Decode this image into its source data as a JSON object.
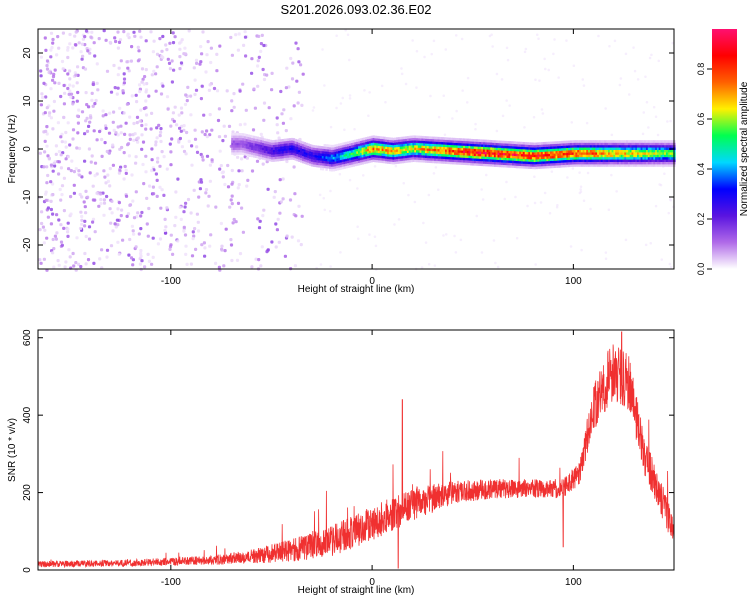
{
  "figure_title": "S201.2026.093.02.36.E02",
  "chart_data": [
    {
      "type": "heatmap",
      "title": "S201.2026.093.02.36.E02",
      "xlabel": "Height of straight line (km)",
      "ylabel": "Frequency (Hz)",
      "xlim": [
        -166,
        150
      ],
      "ylim": [
        -25,
        25
      ],
      "x_ticks": [
        -100,
        0,
        100
      ],
      "y_ticks": [
        -20,
        -10,
        0,
        10,
        20
      ],
      "grid": false,
      "colorbar": {
        "label": "Normalized spectral amplitude",
        "range": [
          0,
          0.96
        ],
        "ticks": [
          0.0,
          0.2,
          0.4,
          0.6,
          0.8
        ],
        "colormap": [
          "#ffffff",
          "#b06ae8",
          "#5a14e0",
          "#0000ff",
          "#00d8ff",
          "#00ff50",
          "#fff000",
          "#ff6000",
          "#ff0000",
          "#ff1070"
        ]
      },
      "structure": {
        "scatter_region_x": [
          -166,
          -35
        ],
        "scatter_region_amplitude": [
          0.02,
          0.15
        ],
        "ridge_center_freq": [
          {
            "x": -65,
            "f": 1
          },
          {
            "x": -50,
            "f": -0.5
          },
          {
            "x": -40,
            "f": 0
          },
          {
            "x": -30,
            "f": -1.5
          },
          {
            "x": -20,
            "f": -2
          },
          {
            "x": -10,
            "f": -1
          },
          {
            "x": 0,
            "f": 0
          },
          {
            "x": 10,
            "f": -0.5
          },
          {
            "x": 20,
            "f": 0
          },
          {
            "x": 40,
            "f": -0.5
          },
          {
            "x": 60,
            "f": -1
          },
          {
            "x": 80,
            "f": -1.5
          },
          {
            "x": 100,
            "f": -1
          },
          {
            "x": 120,
            "f": -1
          },
          {
            "x": 150,
            "f": -1
          }
        ],
        "ridge_peak_amplitude": [
          {
            "x": -65,
            "a": 0.15
          },
          {
            "x": -45,
            "a": 0.3
          },
          {
            "x": -30,
            "a": 0.3
          },
          {
            "x": -10,
            "a": 0.55
          },
          {
            "x": 0,
            "a": 0.8
          },
          {
            "x": 20,
            "a": 0.7
          },
          {
            "x": 50,
            "a": 0.95
          },
          {
            "x": 75,
            "a": 0.9
          },
          {
            "x": 85,
            "a": 0.9
          },
          {
            "x": 100,
            "a": 0.85
          },
          {
            "x": 120,
            "a": 0.75
          },
          {
            "x": 150,
            "a": 0.6
          }
        ]
      }
    },
    {
      "type": "line",
      "xlabel": "Height of straight line (km)",
      "ylabel": "SNR (10 * v/v)",
      "xlim": [
        -166,
        150
      ],
      "ylim": [
        0,
        620
      ],
      "x_ticks": [
        -100,
        0,
        100
      ],
      "y_ticks": [
        0,
        200,
        400,
        600
      ],
      "grid": false,
      "line_color": "#f03030",
      "series": [
        {
          "envelope": [
            {
              "x": -166,
              "mean": 15,
              "noise": 8
            },
            {
              "x": -120,
              "mean": 18,
              "noise": 9
            },
            {
              "x": -80,
              "mean": 25,
              "noise": 12
            },
            {
              "x": -60,
              "mean": 35,
              "noise": 18
            },
            {
              "x": -40,
              "mean": 50,
              "noise": 30
            },
            {
              "x": -20,
              "mean": 75,
              "noise": 40
            },
            {
              "x": 0,
              "mean": 120,
              "noise": 45
            },
            {
              "x": 20,
              "mean": 170,
              "noise": 45
            },
            {
              "x": 40,
              "mean": 200,
              "noise": 30
            },
            {
              "x": 60,
              "mean": 210,
              "noise": 25
            },
            {
              "x": 80,
              "mean": 210,
              "noise": 25
            },
            {
              "x": 95,
              "mean": 210,
              "noise": 25
            },
            {
              "x": 103,
              "mean": 250,
              "noise": 30
            },
            {
              "x": 110,
              "mean": 420,
              "noise": 60
            },
            {
              "x": 120,
              "mean": 520,
              "noise": 80
            },
            {
              "x": 128,
              "mean": 480,
              "noise": 70
            },
            {
              "x": 135,
              "mean": 300,
              "noise": 50
            },
            {
              "x": 150,
              "mean": 100,
              "noise": 40
            }
          ],
          "features": [
            {
              "x": 15,
              "value": 440
            },
            {
              "x": 13,
              "value": 5
            },
            {
              "x": 95,
              "value": 60
            },
            {
              "x": 124,
              "value": 615
            }
          ]
        }
      ]
    }
  ]
}
